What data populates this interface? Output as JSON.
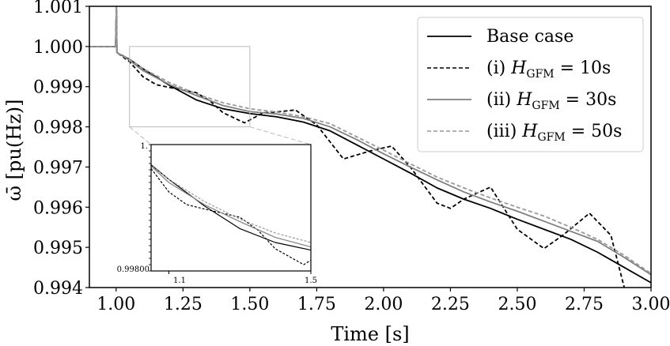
{
  "chart_data": {
    "type": "line",
    "title": "",
    "xlabel": "Time [s]",
    "ylabel": "ω̄ [pu(Hz)]",
    "xlim": [
      0.9,
      3.0
    ],
    "ylim": [
      0.994,
      1.001
    ],
    "xticks": [
      1.0,
      1.25,
      1.5,
      1.75,
      2.0,
      2.25,
      2.5,
      2.75,
      3.0
    ],
    "xtick_labels": [
      "1.00",
      "1.25",
      "1.50",
      "1.75",
      "2.00",
      "2.25",
      "2.50",
      "2.75",
      "3.00"
    ],
    "yticks": [
      0.994,
      0.995,
      0.996,
      0.997,
      0.998,
      0.999,
      1.0,
      1.001
    ],
    "ytick_labels": [
      "0.994",
      "0.995",
      "0.996",
      "0.997",
      "0.998",
      "0.999",
      "1.000",
      "1.001"
    ],
    "legend_position": "top-right",
    "series": [
      {
        "name": "Base case",
        "label_prefix": "Base case",
        "label_var": "",
        "label_value": "",
        "color": "#000000",
        "dash": "solid",
        "x": [
          0.9,
          0.998,
          1.001,
          1.003,
          1.05,
          1.1,
          1.2,
          1.3,
          1.4,
          1.5,
          1.6,
          1.7,
          1.8,
          1.9,
          2.0,
          2.1,
          2.2,
          2.3,
          2.4,
          2.5,
          2.6,
          2.7,
          2.8,
          2.9,
          3.0
        ],
        "y": [
          1.0,
          1.0,
          1.001,
          0.99985,
          0.99968,
          0.99945,
          0.99903,
          0.99867,
          0.99845,
          0.99833,
          0.99825,
          0.99812,
          0.9979,
          0.99755,
          0.9972,
          0.99685,
          0.99648,
          0.9962,
          0.99597,
          0.9957,
          0.99545,
          0.9952,
          0.99488,
          0.9945,
          0.99412
        ]
      },
      {
        "name": "(i) H_GFM = 10s",
        "label_prefix": "(i) ",
        "label_var": "H",
        "label_sub": "GFM",
        "label_value": " = 10s",
        "color": "#000000",
        "dash": "dashed",
        "x": [
          0.9,
          0.998,
          1.001,
          1.003,
          1.05,
          1.1,
          1.15,
          1.2,
          1.3,
          1.35,
          1.4,
          1.48,
          1.55,
          1.6,
          1.67,
          1.75,
          1.85,
          1.95,
          2.03,
          2.1,
          2.2,
          2.25,
          2.3,
          2.4,
          2.5,
          2.6,
          2.67,
          2.77,
          2.85,
          2.9
        ],
        "y": [
          1.0,
          1.0,
          1.001,
          0.99985,
          0.99962,
          0.99925,
          0.99905,
          0.99898,
          0.99885,
          0.99865,
          0.99835,
          0.9981,
          0.99835,
          0.99837,
          0.99842,
          0.99805,
          0.9972,
          0.9974,
          0.99752,
          0.997,
          0.9961,
          0.99597,
          0.9962,
          0.9965,
          0.99545,
          0.99497,
          0.9953,
          0.99585,
          0.9953,
          0.994
        ]
      },
      {
        "name": "(ii) H_GFM = 30s",
        "label_prefix": "(ii) ",
        "label_var": "H",
        "label_sub": "GFM",
        "label_value": " = 30s",
        "color": "#808080",
        "dash": "solid",
        "x": [
          0.9,
          0.998,
          1.001,
          1.003,
          1.05,
          1.1,
          1.2,
          1.3,
          1.4,
          1.5,
          1.6,
          1.7,
          1.8,
          1.9,
          2.0,
          2.1,
          2.2,
          2.3,
          2.4,
          2.5,
          2.6,
          2.7,
          2.8,
          2.9,
          3.0
        ],
        "y": [
          1.0,
          1.0,
          1.001,
          0.99985,
          0.99966,
          0.9994,
          0.99905,
          0.99878,
          0.99853,
          0.99838,
          0.99832,
          0.99821,
          0.998,
          0.99768,
          0.99733,
          0.997,
          0.99668,
          0.99638,
          0.99613,
          0.9959,
          0.99565,
          0.9954,
          0.99515,
          0.99475,
          0.99432
        ]
      },
      {
        "name": "(iii) H_GFM = 50s",
        "label_prefix": "(iii) ",
        "label_var": "H",
        "label_sub": "GFM",
        "label_value": " = 50s",
        "color": "#999999",
        "dash": "dashed",
        "x": [
          0.9,
          0.998,
          1.001,
          1.003,
          1.05,
          1.1,
          1.2,
          1.3,
          1.4,
          1.5,
          1.6,
          1.7,
          1.8,
          1.9,
          2.0,
          2.1,
          2.2,
          2.3,
          2.4,
          2.5,
          2.6,
          2.7,
          2.8,
          2.9,
          3.0
        ],
        "y": [
          1.0,
          1.0,
          1.001,
          0.99985,
          0.99967,
          0.99945,
          0.9991,
          0.99882,
          0.9986,
          0.99845,
          0.99837,
          0.99825,
          0.99808,
          0.99775,
          0.99742,
          0.99708,
          0.99675,
          0.99648,
          0.99623,
          0.996,
          0.99578,
          0.9955,
          0.9952,
          0.9948,
          0.99435
        ]
      }
    ],
    "inset": {
      "xlim": [
        1.05,
        1.5
      ],
      "ylim": [
        0.998,
        1.0
      ],
      "xtick_labels": [
        "1.1",
        "1.5"
      ],
      "xticks": [
        1.1,
        1.5
      ],
      "ytick_top_label": "1.",
      "ytick_bottom_label": "0.99800"
    }
  }
}
